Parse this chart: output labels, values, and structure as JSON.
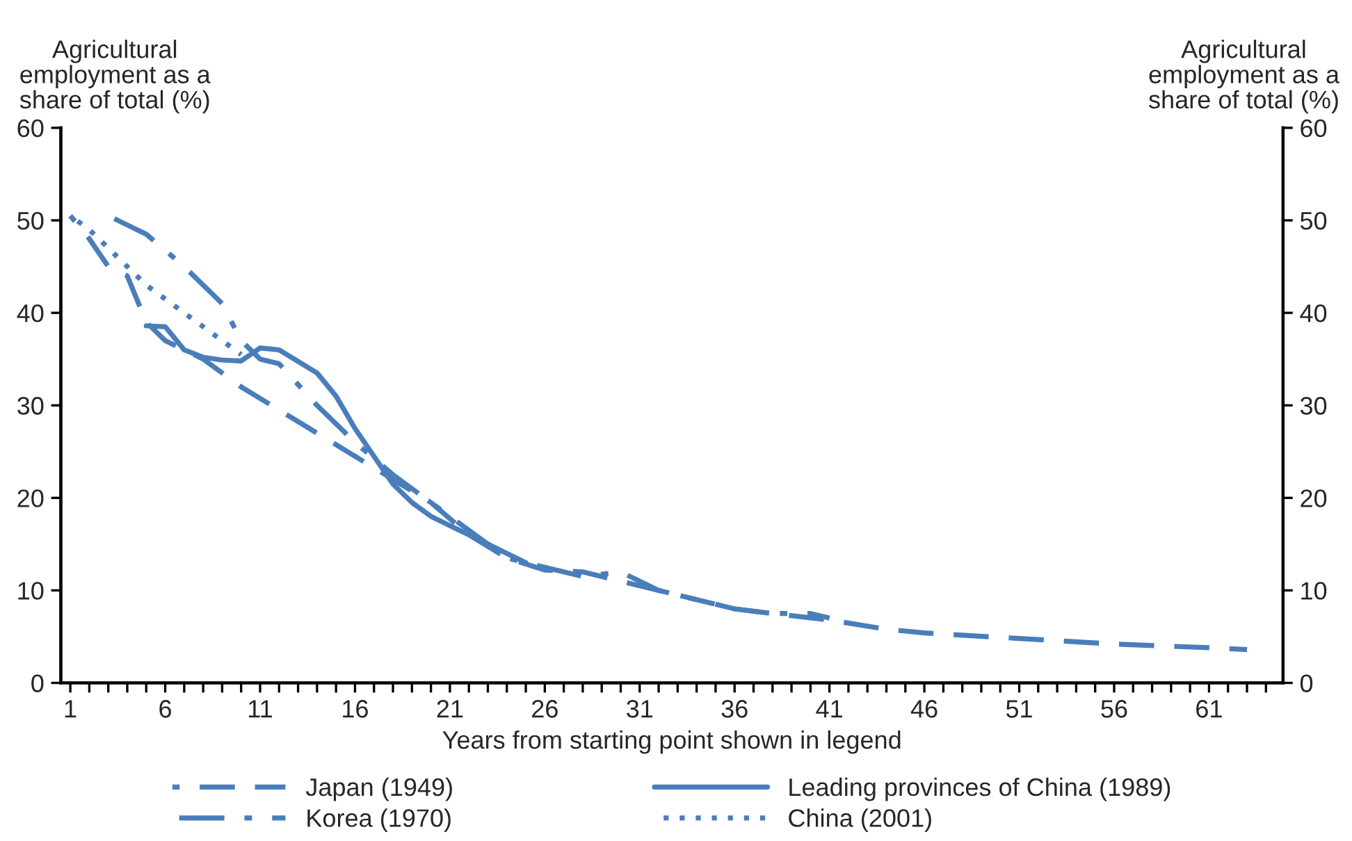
{
  "chart_data": {
    "type": "line",
    "xlabel": "Years from starting point shown in legend",
    "ylabel": "Agricultural employment as a share of total (%)",
    "y2label": "Agricultural employment as a share of total (%)",
    "xlim": [
      0.5,
      64.9
    ],
    "xticks": [
      1,
      {
        "value": 2,
        "label": null
      },
      {
        "value": 3,
        "label": null
      },
      {
        "value": 4,
        "label": null
      },
      {
        "value": 5,
        "label": null
      },
      6,
      {
        "value": 7,
        "label": null
      },
      {
        "value": 8,
        "label": null
      },
      {
        "value": 9,
        "label": null
      },
      {
        "value": 10,
        "label": null
      },
      11,
      {
        "value": 12,
        "label": null
      },
      {
        "value": 13,
        "label": null
      },
      {
        "value": 14,
        "label": null
      },
      {
        "value": 15,
        "label": null
      },
      16,
      {
        "value": 17,
        "label": null
      },
      {
        "value": 18,
        "label": null
      },
      {
        "value": 19,
        "label": null
      },
      {
        "value": 20,
        "label": null
      },
      21,
      {
        "value": 22,
        "label": null
      },
      {
        "value": 23,
        "label": null
      },
      {
        "value": 24,
        "label": null
      },
      {
        "value": 25,
        "label": null
      },
      26,
      {
        "value": 27,
        "label": null
      },
      {
        "value": 28,
        "label": null
      },
      {
        "value": 29,
        "label": null
      },
      {
        "value": 30,
        "label": null
      },
      31,
      {
        "value": 32,
        "label": null
      },
      {
        "value": 33,
        "label": null
      },
      {
        "value": 34,
        "label": null
      },
      {
        "value": 35,
        "label": null
      },
      36,
      {
        "value": 37,
        "label": null
      },
      {
        "value": 38,
        "label": null
      },
      {
        "value": 39,
        "label": null
      },
      {
        "value": 40,
        "label": null
      },
      41,
      {
        "value": 42,
        "label": null
      },
      {
        "value": 43,
        "label": null
      },
      {
        "value": 44,
        "label": null
      },
      {
        "value": 45,
        "label": null
      },
      46,
      {
        "value": 47,
        "label": null
      },
      {
        "value": 48,
        "label": null
      },
      {
        "value": 49,
        "label": null
      },
      {
        "value": 50,
        "label": null
      },
      51,
      {
        "value": 52,
        "label": null
      },
      {
        "value": 53,
        "label": null
      },
      {
        "value": 54,
        "label": null
      },
      {
        "value": 55,
        "label": null
      },
      56,
      {
        "value": 57,
        "label": null
      },
      {
        "value": 58,
        "label": null
      },
      {
        "value": 59,
        "label": null
      },
      {
        "value": 60,
        "label": null
      },
      61,
      {
        "value": 62,
        "label": null
      },
      {
        "value": 63,
        "label": null
      },
      {
        "value": 64,
        "label": null
      }
    ],
    "ylim": [
      0,
      60
    ],
    "yticks": [
      0,
      10,
      20,
      30,
      40,
      50,
      60
    ],
    "y2lim": [
      0,
      60
    ],
    "y2ticks": [
      0,
      10,
      20,
      30,
      40,
      50,
      60
    ],
    "grid": false,
    "legend": "bottom",
    "marker": "none",
    "series": [
      {
        "name": "Japan (1949)",
        "color": "#4a7ebb",
        "line_style": "dashed",
        "x": [
          1,
          2,
          3,
          4,
          5,
          6,
          8,
          10,
          12,
          14,
          16,
          18,
          20,
          22,
          24,
          26,
          28,
          30,
          32,
          34,
          36,
          38,
          41,
          44,
          46,
          51,
          56,
          61,
          63
        ],
        "values": [
          50.5,
          48,
          45,
          44,
          39,
          37,
          35,
          32,
          29.5,
          27,
          24.5,
          22,
          19.5,
          16,
          13.5,
          12.2,
          12,
          11,
          10,
          9,
          8,
          7.5,
          6.8,
          5.8,
          5.4,
          4.8,
          4.2,
          3.8,
          3.6
        ]
      },
      {
        "name": "Leading provinces of China (1989)",
        "color": "#4a7ebb",
        "line_style": "solid",
        "x": [
          5,
          6,
          7,
          8,
          9,
          10,
          11,
          12,
          14,
          15,
          16,
          17,
          18,
          19,
          20,
          21,
          22,
          23,
          24,
          25
        ],
        "values": [
          38.6,
          38.5,
          36,
          35.2,
          34.9,
          34.8,
          36.2,
          36,
          33.5,
          31,
          27.5,
          24.5,
          21.5,
          19.5,
          18,
          17,
          16,
          15,
          14,
          13
        ]
      },
      {
        "name": "Korea (1970)",
        "color": "#4a7ebb",
        "line_style": "dashdot",
        "x": [
          3,
          5,
          7,
          9,
          10,
          11,
          12,
          14,
          16,
          18,
          20,
          22,
          24,
          26,
          28,
          30,
          32,
          34,
          36,
          38,
          40,
          41
        ],
        "values": [
          50.5,
          48.5,
          45,
          41,
          37,
          35,
          34.5,
          30,
          26,
          22.5,
          19.5,
          16.5,
          13.5,
          12.5,
          11.5,
          12,
          10,
          9,
          8,
          7.5,
          7.5,
          7
        ]
      },
      {
        "name": "China (2001)",
        "color": "#4a7ebb",
        "line_style": "dotted",
        "x": [
          1,
          2,
          3,
          4,
          5,
          6,
          7,
          8,
          9,
          10
        ],
        "values": [
          50.5,
          49,
          47,
          45,
          43,
          41.5,
          40,
          38.5,
          37,
          35.5
        ]
      }
    ]
  }
}
